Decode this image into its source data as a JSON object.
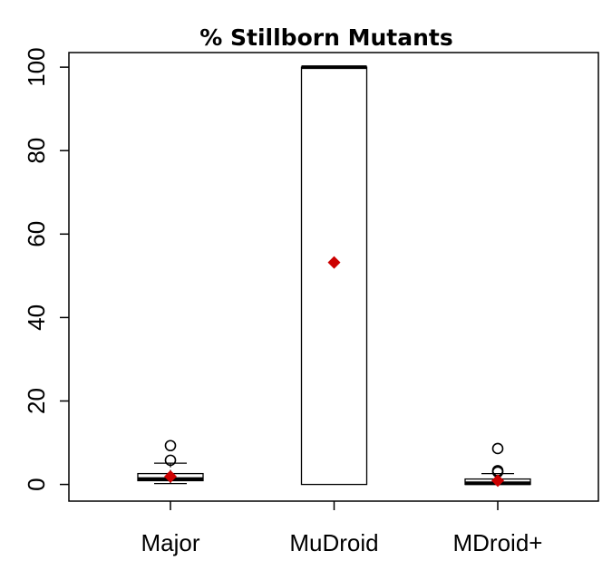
{
  "chart_data": {
    "type": "boxplot",
    "title": "% Stillborn Mutants",
    "xlabel": "",
    "ylabel": "",
    "ylim": [
      -4,
      103.5
    ],
    "y_ticks": [
      0,
      20,
      40,
      60,
      80,
      100
    ],
    "categories": [
      "Major",
      "MuDroid",
      "MDroid+"
    ],
    "boxes": [
      {
        "category": "Major",
        "whisker_low": 0.2,
        "q1": 0.9,
        "median": 1.3,
        "q3": 2.6,
        "whisker_high": 5.1,
        "outliers": [
          5.8,
          9.3
        ],
        "mean": 1.9
      },
      {
        "category": "MuDroid",
        "whisker_low": 0,
        "q1": 0,
        "median": 100,
        "q3": 100,
        "whisker_high": 100,
        "outliers": [],
        "mean": 53.2
      },
      {
        "category": "MDroid+",
        "whisker_low": 0,
        "q1": 0,
        "median": 0.3,
        "q3": 1.3,
        "whisker_high": 2.6,
        "outliers": [
          3.0,
          3.3,
          8.6
        ],
        "mean": 0.9
      }
    ],
    "mean_marker": {
      "shape": "diamond",
      "color": "#cc0000"
    },
    "grid": false,
    "legend": "none"
  }
}
